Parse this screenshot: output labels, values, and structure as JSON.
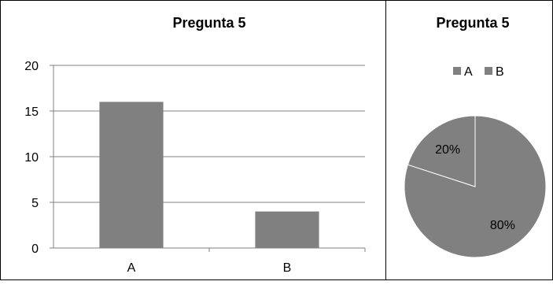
{
  "chart_data": [
    {
      "type": "bar",
      "title": "Pregunta 5",
      "categories": [
        "A",
        "B"
      ],
      "values": [
        16,
        4
      ],
      "ylim": [
        0,
        20
      ],
      "yticks": [
        0,
        5,
        10,
        15,
        20
      ],
      "grid": true,
      "legend": "none",
      "bar_color": "#808080"
    },
    {
      "type": "pie",
      "title": "Pregunta 5",
      "labels": [
        "A",
        "B"
      ],
      "values": [
        80,
        20
      ],
      "value_labels": [
        "80%",
        "20%"
      ],
      "legend": "top",
      "colors": [
        "#808080",
        "#808080"
      ]
    }
  ]
}
